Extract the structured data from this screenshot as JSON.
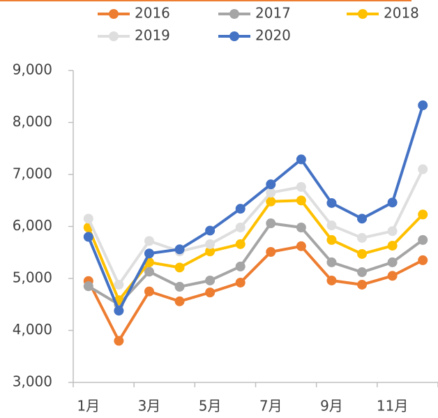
{
  "chart_data": {
    "type": "line",
    "categories": [
      "1月",
      null,
      "3月",
      null,
      "5月",
      null,
      "7月",
      null,
      "9月",
      null,
      "11月",
      null
    ],
    "series": [
      {
        "name": "2016",
        "color": "#ed7d31",
        "values": [
          4950,
          3800,
          4750,
          4560,
          4730,
          4920,
          5510,
          5620,
          4960,
          4880,
          5050,
          5350
        ]
      },
      {
        "name": "2017",
        "color": "#a5a5a5",
        "values": [
          4850,
          4500,
          5130,
          4840,
          4960,
          5230,
          6060,
          5980,
          5310,
          5120,
          5310,
          5740
        ]
      },
      {
        "name": "2018",
        "color": "#ffc000",
        "values": [
          5980,
          4580,
          5310,
          5210,
          5520,
          5660,
          6480,
          6500,
          5740,
          5470,
          5630,
          6230
        ]
      },
      {
        "name": "2019",
        "color": "#dedede",
        "values": [
          6150,
          4880,
          5720,
          5520,
          5660,
          5980,
          6650,
          6760,
          6020,
          5780,
          5910,
          7100
        ]
      },
      {
        "name": "2020",
        "color": "#4472c4",
        "values": [
          5800,
          4380,
          5480,
          5560,
          5920,
          6340,
          6810,
          7290,
          6450,
          6150,
          6460,
          8330
        ]
      }
    ],
    "ylim": [
      3000,
      9000
    ],
    "yticks": [
      {
        "value": 3000,
        "label": "3,000"
      },
      {
        "value": 4000,
        "label": "4,000"
      },
      {
        "value": 5000,
        "label": "5,000"
      },
      {
        "value": 6000,
        "label": "6,000"
      },
      {
        "value": 7000,
        "label": "7,000"
      },
      {
        "value": 8000,
        "label": "8,000"
      },
      {
        "value": 9000,
        "label": "9,000"
      }
    ],
    "legend": "top"
  }
}
